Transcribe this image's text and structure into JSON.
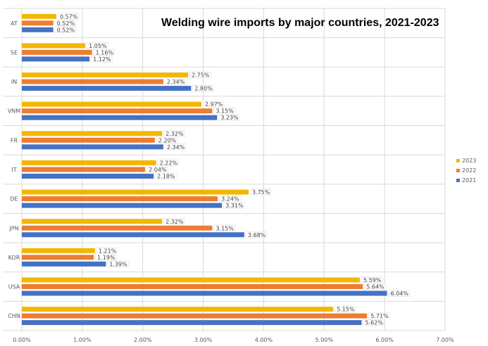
{
  "chart_data": {
    "type": "bar",
    "orientation": "horizontal",
    "title": "Welding wire imports by major countries, 2021-2023",
    "categories": [
      "AT",
      "SE",
      "IN",
      "VNM",
      "FR",
      "IT",
      "DE",
      "JPN",
      "KOR",
      "USA",
      "CHN"
    ],
    "series": [
      {
        "name": "2023",
        "color": "#F2B705",
        "values": [
          0.57,
          1.05,
          2.75,
          2.97,
          2.32,
          2.22,
          3.75,
          2.32,
          1.21,
          5.59,
          5.15
        ],
        "labels": [
          "0.57%",
          "1.05%",
          "2.75%",
          "2.97%",
          "2.32%",
          "2.22%",
          "3.75%",
          "2.32%",
          "1.21%",
          "5.59%",
          "5.15%"
        ]
      },
      {
        "name": "2022",
        "color": "#ED7D31",
        "values": [
          0.52,
          1.16,
          2.34,
          3.15,
          2.2,
          2.04,
          3.24,
          3.15,
          1.19,
          5.64,
          5.71
        ],
        "labels": [
          "0.52%",
          "1.16%",
          "2.34%",
          "3.15%",
          "2.20%",
          "2.04%",
          "3.24%",
          "3.15%",
          "1.19%",
          "5.64%",
          "5.71%"
        ]
      },
      {
        "name": "2021",
        "color": "#4472C4",
        "values": [
          0.52,
          1.12,
          2.8,
          3.23,
          2.34,
          2.18,
          3.31,
          3.68,
          1.39,
          6.04,
          5.62
        ],
        "labels": [
          "0.52%",
          "1.12%",
          "2.80%",
          "3.23%",
          "2.34%",
          "2.18%",
          "3.31%",
          "3.68%",
          "1.39%",
          "6.04%",
          "5.62%"
        ]
      }
    ],
    "x_ticks": [
      "0.00%",
      "1.00%",
      "2.00%",
      "3.00%",
      "4.00%",
      "5.00%",
      "6.00%",
      "7.00%"
    ],
    "xlim": [
      0,
      7
    ],
    "grid": "vertical major gridlines and horizontal category separators",
    "legend": {
      "position": "right",
      "order": [
        "2023",
        "2022",
        "2021"
      ]
    }
  }
}
